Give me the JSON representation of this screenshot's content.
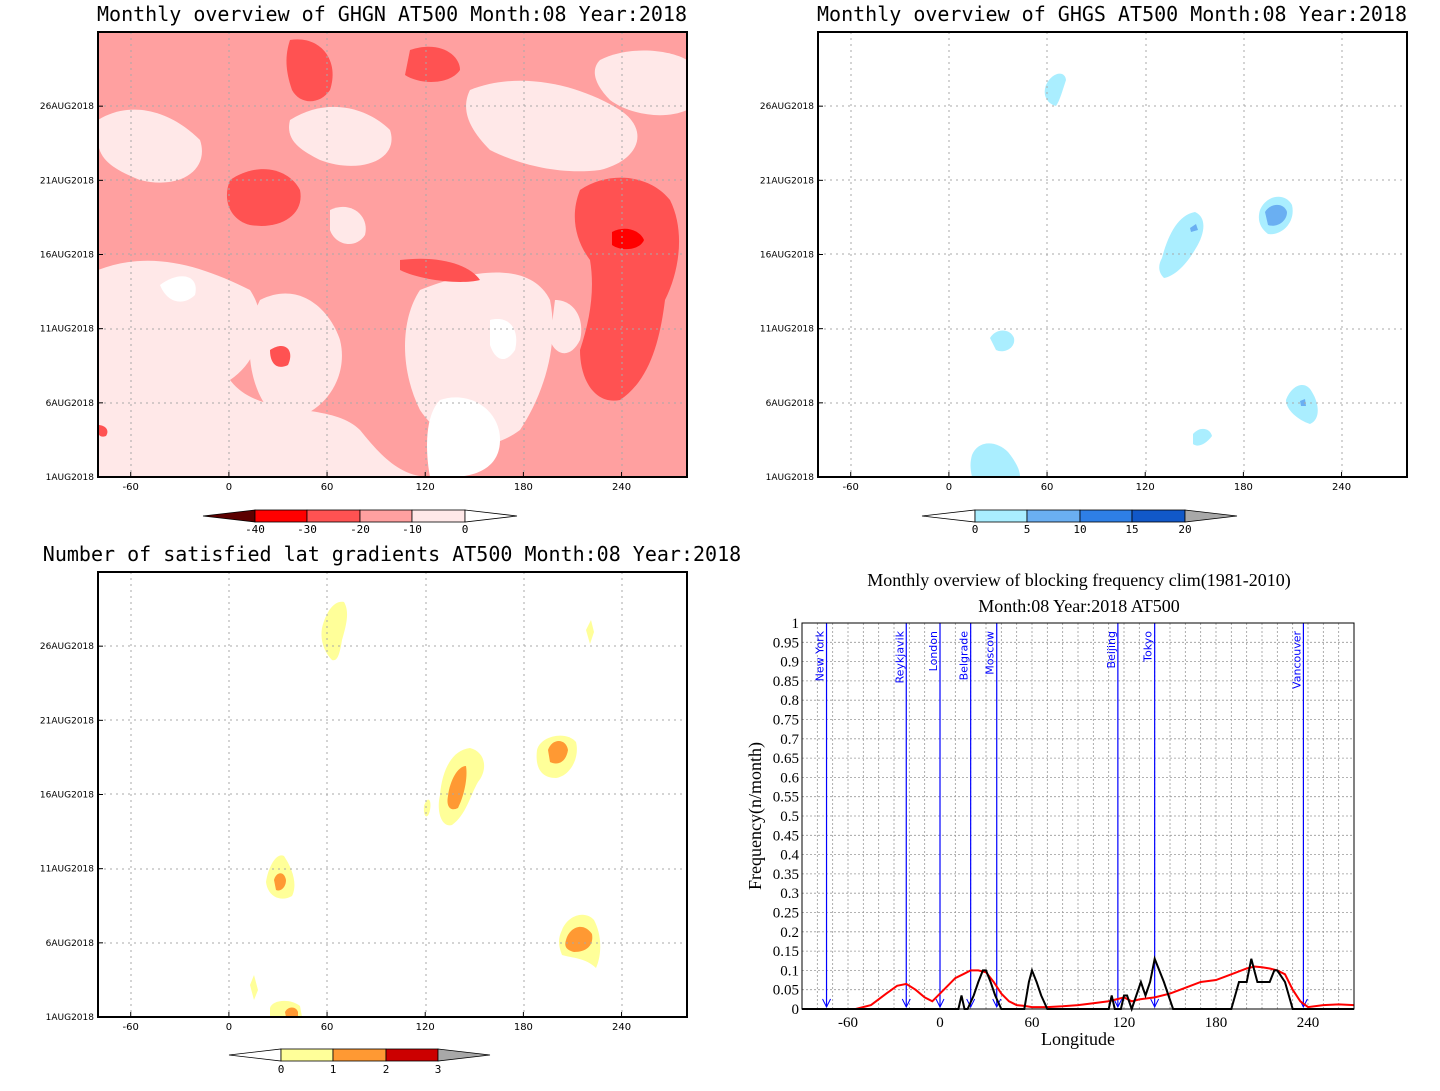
{
  "chart_data": [
    {
      "type": "heatmap",
      "title": "Monthly overview of GHGN AT500 Month:08 Year:2018",
      "xlabel": "",
      "ylabel": "",
      "x_ticks": [
        "-60",
        "0",
        "60",
        "120",
        "180",
        "240"
      ],
      "x_tick_values": [
        -60,
        0,
        60,
        120,
        180,
        240
      ],
      "xlim": [
        -80,
        280
      ],
      "y_ticks": [
        "1AUG2018",
        "6AUG2018",
        "11AUG2018",
        "16AUG2018",
        "21AUG2018",
        "26AUG2018"
      ],
      "y_tick_values": [
        1,
        6,
        11,
        16,
        21,
        26
      ],
      "ylim": [
        1,
        31
      ],
      "grid": true,
      "colorbar": {
        "labels": [
          "-40",
          "-30",
          "-20",
          "-10",
          "0"
        ],
        "colors": [
          "#5c0000",
          "#c70000",
          "#ff0000",
          "#ff5252",
          "#ffa0a0",
          "#ffe8e8",
          "#ffffff"
        ]
      }
    },
    {
      "type": "heatmap",
      "title": "Monthly overview of GHGS AT500 Month:08 Year:2018",
      "xlabel": "",
      "ylabel": "",
      "x_ticks": [
        "-60",
        "0",
        "60",
        "120",
        "180",
        "240"
      ],
      "x_tick_values": [
        -60,
        0,
        60,
        120,
        180,
        240
      ],
      "xlim": [
        -80,
        280
      ],
      "y_ticks": [
        "1AUG2018",
        "6AUG2018",
        "11AUG2018",
        "16AUG2018",
        "21AUG2018",
        "26AUG2018"
      ],
      "y_tick_values": [
        1,
        6,
        11,
        16,
        21,
        26
      ],
      "ylim": [
        1,
        31
      ],
      "grid": true,
      "colorbar": {
        "labels": [
          "0",
          "5",
          "10",
          "15",
          "20"
        ],
        "colors": [
          "#ffffff",
          "#aaeeff",
          "#6aaff2",
          "#2e7fe6",
          "#1158c8",
          "#a8a8a8"
        ]
      }
    },
    {
      "type": "heatmap",
      "title": "Number of satisfied lat gradients AT500 Month:08 Year:2018",
      "xlabel": "",
      "ylabel": "",
      "x_ticks": [
        "-60",
        "0",
        "60",
        "120",
        "180",
        "240"
      ],
      "x_tick_values": [
        -60,
        0,
        60,
        120,
        180,
        240
      ],
      "xlim": [
        -80,
        280
      ],
      "y_ticks": [
        "1AUG2018",
        "6AUG2018",
        "11AUG2018",
        "16AUG2018",
        "21AUG2018",
        "26AUG2018"
      ],
      "y_tick_values": [
        1,
        6,
        11,
        16,
        21,
        26
      ],
      "ylim": [
        1,
        31
      ],
      "grid": true,
      "colorbar": {
        "labels": [
          "0",
          "1",
          "2",
          "3"
        ],
        "colors": [
          "#ffffff",
          "#ffff99",
          "#ff9933",
          "#cc0000",
          "#a8a8a8"
        ]
      }
    },
    {
      "type": "line",
      "title": "Monthly overview of blocking frequency clim(1981-2010)",
      "subtitle": "Month:08 Year:2018  AT500",
      "xlabel": "Longitude",
      "ylabel": "Frequency(n/month)",
      "xlim": [
        -90,
        270
      ],
      "ylim": [
        0,
        1
      ],
      "x_ticks": [
        "-60",
        "0",
        "60",
        "120",
        "180",
        "240"
      ],
      "x_tick_values": [
        -60,
        0,
        60,
        120,
        180,
        240
      ],
      "y_ticks": [
        "0",
        "0.05",
        "0.1",
        "0.15",
        "0.2",
        "0.25",
        "0.3",
        "0.35",
        "0.4",
        "0.45",
        "0.5",
        "0.55",
        "0.6",
        "0.65",
        "0.7",
        "0.75",
        "0.8",
        "0.85",
        "0.9",
        "0.95",
        "1"
      ],
      "y_tick_values": [
        0,
        0.05,
        0.1,
        0.15,
        0.2,
        0.25,
        0.3,
        0.35,
        0.4,
        0.45,
        0.5,
        0.55,
        0.6,
        0.65,
        0.7,
        0.75,
        0.8,
        0.85,
        0.9,
        0.95,
        1
      ],
      "grid": true,
      "cities": [
        {
          "name": "New York",
          "lon": -74
        },
        {
          "name": "Reykjavik",
          "lon": -22
        },
        {
          "name": "London",
          "lon": 0
        },
        {
          "name": "Belgrade",
          "lon": 20
        },
        {
          "name": "Moscow",
          "lon": 37
        },
        {
          "name": "Beijing",
          "lon": 116
        },
        {
          "name": "Tokyo",
          "lon": 140
        },
        {
          "name": "Vancouver",
          "lon": 237
        }
      ],
      "series": [
        {
          "color": "#ff0000",
          "x": [
            -90,
            -70,
            -55,
            -45,
            -35,
            -28,
            -22,
            -16,
            -10,
            -5,
            0,
            5,
            10,
            15,
            20,
            25,
            30,
            35,
            40,
            45,
            50,
            55,
            60,
            70,
            80,
            90,
            100,
            110,
            115,
            120,
            125,
            130,
            140,
            150,
            160,
            170,
            180,
            190,
            200,
            205,
            210,
            215,
            220,
            225,
            230,
            235,
            240,
            250,
            260,
            270
          ],
          "y": [
            0,
            0,
            0,
            0.01,
            0.04,
            0.06,
            0.065,
            0.05,
            0.03,
            0.02,
            0.04,
            0.06,
            0.08,
            0.09,
            0.1,
            0.1,
            0.095,
            0.07,
            0.04,
            0.02,
            0.01,
            0.008,
            0.005,
            0.005,
            0.007,
            0.01,
            0.015,
            0.02,
            0.025,
            0.03,
            0.02,
            0.025,
            0.03,
            0.04,
            0.055,
            0.07,
            0.075,
            0.09,
            0.105,
            0.11,
            0.108,
            0.105,
            0.1,
            0.09,
            0.05,
            0.02,
            0.005,
            0.01,
            0.012,
            0.01
          ]
        },
        {
          "color": "#000000",
          "x": [
            -90,
            12,
            14,
            16,
            18,
            22,
            25,
            28,
            30,
            33,
            36,
            40,
            44,
            55,
            58,
            60,
            63,
            66,
            70,
            110,
            112,
            114,
            116,
            118,
            120,
            122,
            125,
            128,
            131,
            134,
            137,
            140,
            143,
            146,
            149,
            152,
            155,
            190,
            195,
            200,
            203,
            205,
            207,
            210,
            215,
            218,
            220,
            225,
            230,
            270
          ],
          "y": [
            0,
            0,
            0.035,
            0,
            0,
            0.035,
            0.07,
            0.1,
            0.1,
            0.07,
            0.035,
            0,
            0,
            0,
            0.07,
            0.1,
            0.07,
            0.035,
            0,
            0,
            0.035,
            0,
            0,
            0,
            0.035,
            0.035,
            0,
            0.035,
            0.07,
            0.035,
            0.07,
            0.13,
            0.1,
            0.07,
            0.035,
            0,
            0,
            0,
            0.07,
            0.07,
            0.13,
            0.1,
            0.07,
            0.07,
            0.07,
            0.1,
            0.1,
            0.07,
            0,
            0
          ]
        }
      ]
    }
  ]
}
